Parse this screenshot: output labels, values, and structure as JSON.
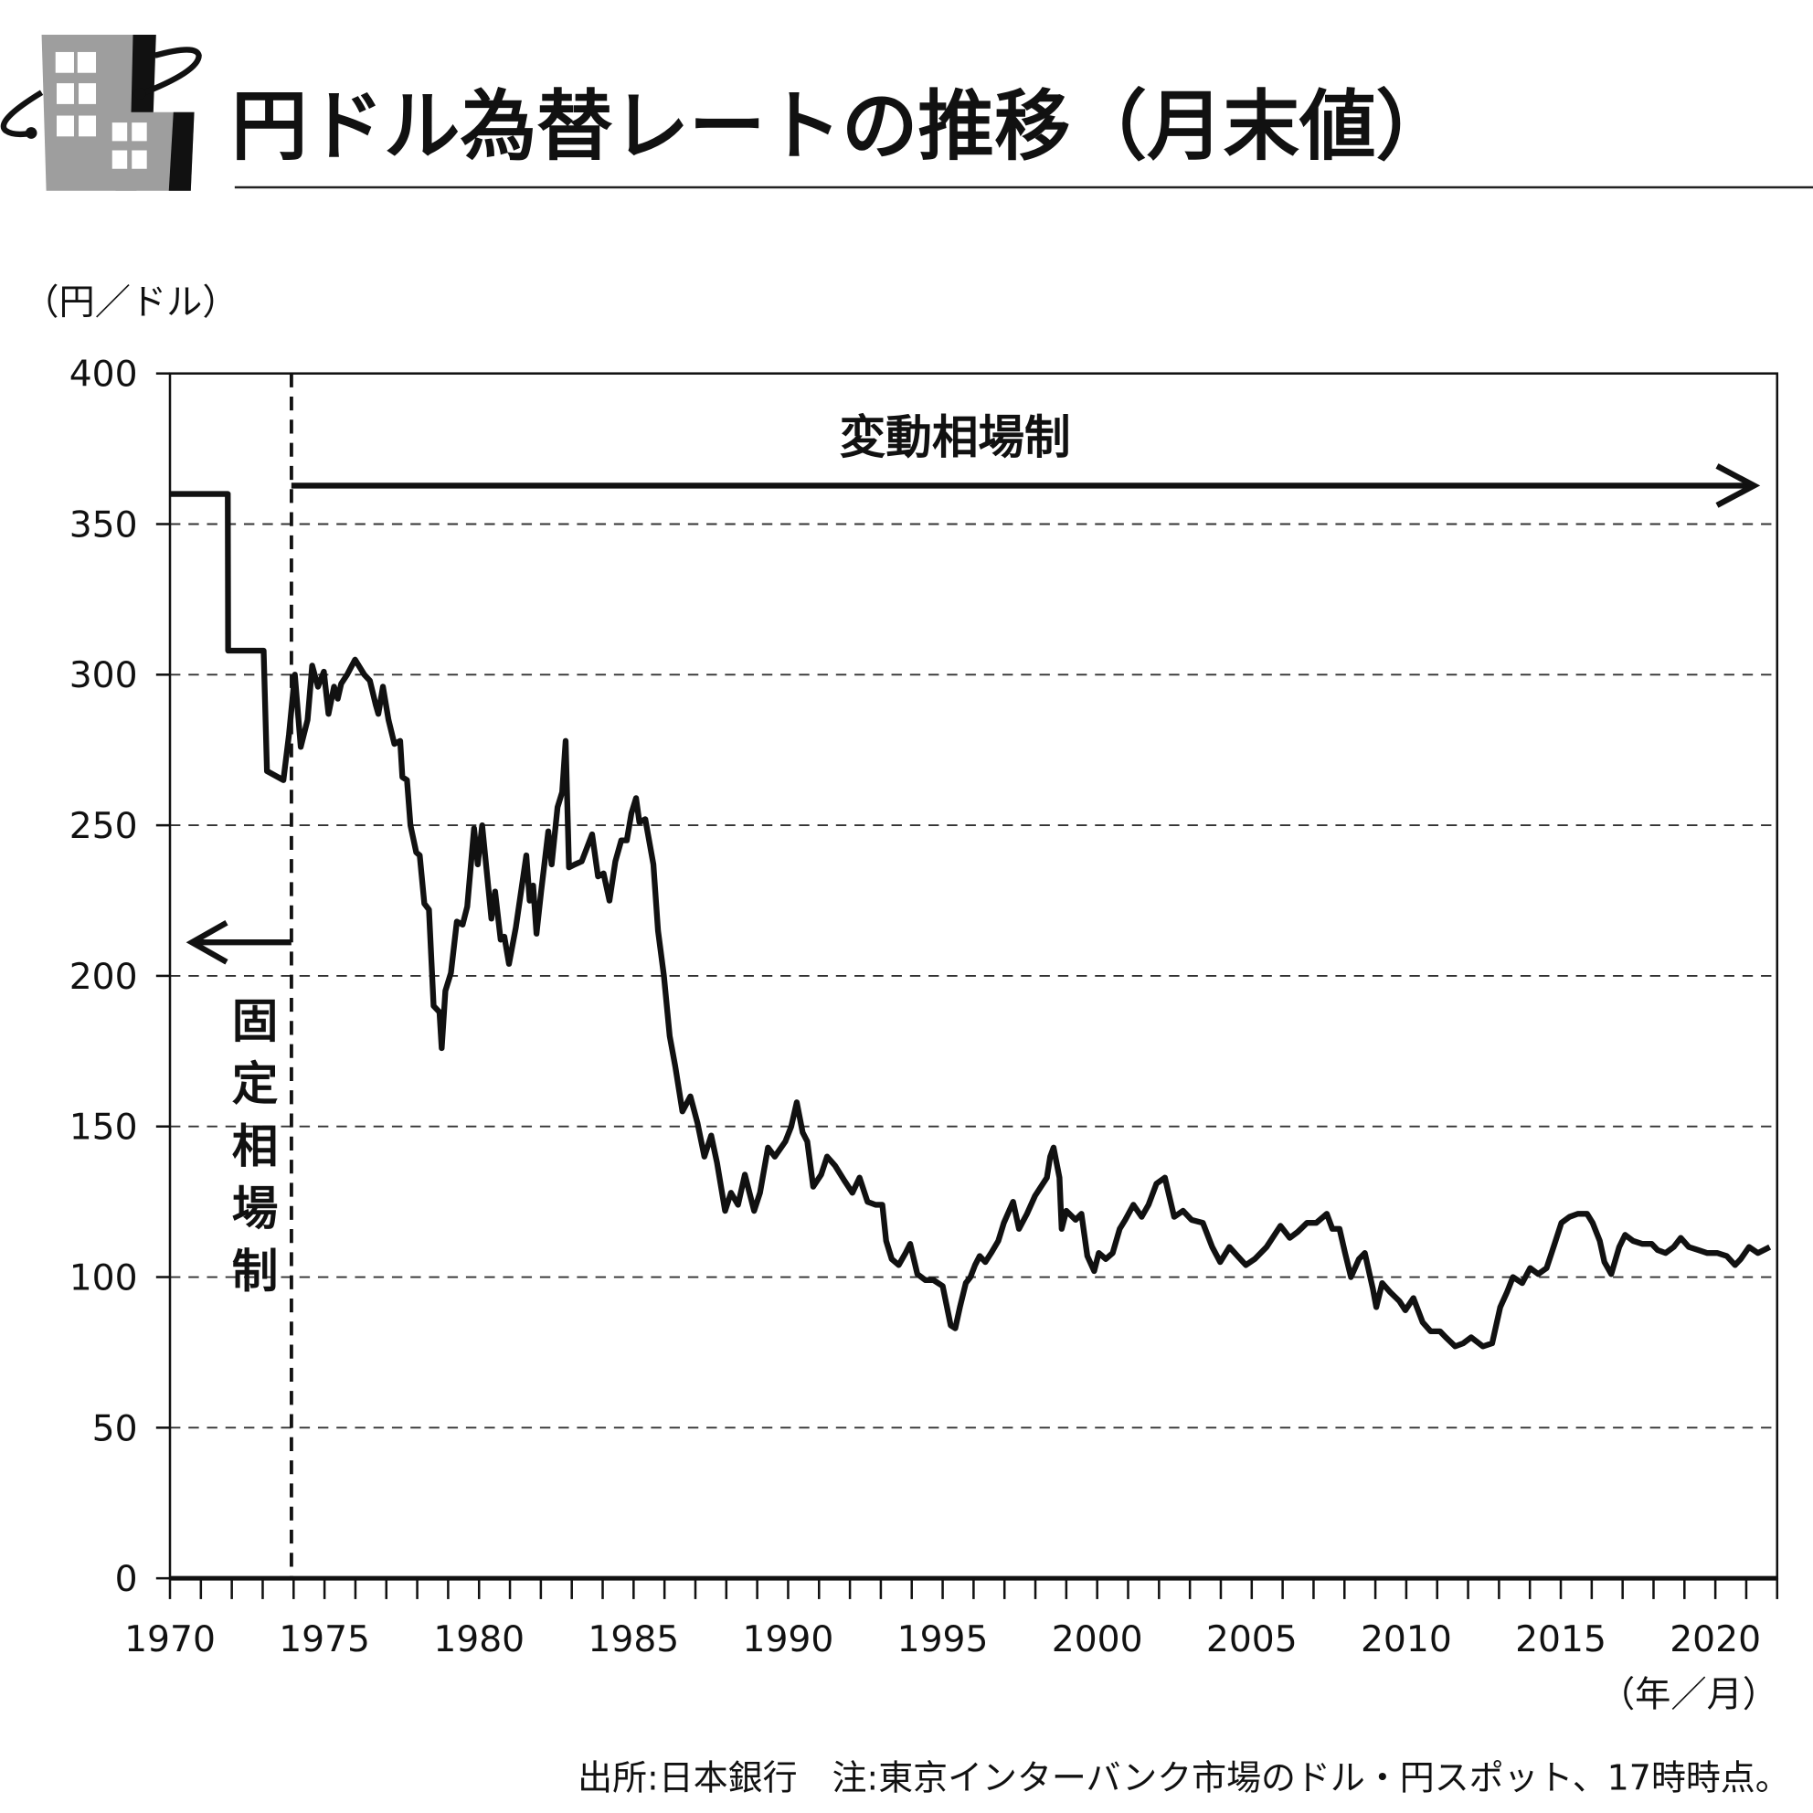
{
  "header": {
    "title": "円ドル為替レートの推移（月末値）",
    "logo": "office-building-globe-icon"
  },
  "chart_data": {
    "type": "line",
    "title": "円ドル為替レートの推移（月末値）",
    "ylabel": "（円／ドル）",
    "xlabel": "（年／月）",
    "ylim": [
      0,
      400
    ],
    "xlim": [
      1970,
      2022
    ],
    "yticks": [
      "0",
      "50",
      "100",
      "150",
      "200",
      "250",
      "300",
      "350",
      "400"
    ],
    "xticks": [
      "1970",
      "1975",
      "1980",
      "1985",
      "1990",
      "1995",
      "2000",
      "2005",
      "2010",
      "2015",
      "2020"
    ],
    "grid": "horizontal dashed",
    "regime_boundary": 1973.93,
    "annotations": {
      "fixed": "固定相場制",
      "floating": "変動相場制"
    },
    "source_note": "出所:日本銀行　注:東京インターバンク市場のドル・円スポット、17時時点。",
    "line_color": "#111111",
    "series": [
      {
        "x": [
          1970,
          1971.87,
          1971.88,
          1973.03,
          1973.14,
          1973.67,
          1973.85,
          1974.04,
          1974.23,
          1974.45,
          1974.6,
          1974.79,
          1974.98,
          1975.13,
          1975.31,
          1975.43,
          1975.54,
          1975.73,
          1975.99,
          1976.29,
          1976.47,
          1976.66,
          1976.74,
          1976.89,
          1977.07,
          1977.26,
          1977.45,
          1977.52,
          1977.67,
          1977.78,
          1977.97,
          1978.08,
          1978.23,
          1978.38,
          1978.53,
          1978.72,
          1978.79,
          1978.91,
          1979.09,
          1979.28,
          1979.47,
          1979.62,
          1979.84,
          1979.96,
          1980.1,
          1980.4,
          1980.52,
          1980.7,
          1980.82,
          1980.97,
          1981.19,
          1981.53,
          1981.64,
          1981.75,
          1981.86,
          1982.01,
          1982.24,
          1982.35,
          1982.54,
          1982.69,
          1982.8,
          1982.91,
          1983.1,
          1983.32,
          1983.66,
          1983.85,
          1984.03,
          1984.22,
          1984.41,
          1984.6,
          1984.78,
          1984.93,
          1985.08,
          1985.19,
          1985.38,
          1985.64,
          1985.79,
          1985.98,
          1986.17,
          1986.35,
          1986.58,
          1986.84,
          1987.07,
          1987.29,
          1987.51,
          1987.7,
          1987.96,
          1988.15,
          1988.38,
          1988.6,
          1988.9,
          1989.09,
          1989.35,
          1989.57,
          1989.91,
          1990.1,
          1990.28,
          1990.47,
          1990.62,
          1990.81,
          1991.07,
          1991.26,
          1991.52,
          1991.82,
          1992.08,
          1992.31,
          1992.57,
          1992.83,
          1993.05,
          1993.17,
          1993.35,
          1993.58,
          1993.8,
          1993.95,
          1994.18,
          1994.44,
          1994.7,
          1995.0,
          1995.26,
          1995.41,
          1995.56,
          1995.75,
          1995.9,
          1996.05,
          1996.2,
          1996.38,
          1996.57,
          1996.8,
          1996.98,
          1997.28,
          1997.47,
          1997.73,
          1997.99,
          1998.37,
          1998.48,
          1998.59,
          1998.78,
          1998.85,
          1999.0,
          1999.3,
          1999.49,
          1999.68,
          1999.9,
          2000.05,
          2000.28,
          2000.5,
          2000.73,
          2000.91,
          2001.17,
          2001.44,
          2001.66,
          2001.92,
          2002.19,
          2002.49,
          2002.78,
          2003.05,
          2003.42,
          2003.72,
          2003.98,
          2004.28,
          2004.54,
          2004.81,
          2005.1,
          2005.48,
          2005.93,
          2006.23,
          2006.49,
          2006.79,
          2007.09,
          2007.43,
          2007.61,
          2007.84,
          2008.02,
          2008.21,
          2008.47,
          2008.66,
          2008.92,
          2009.03,
          2009.22,
          2009.48,
          2009.78,
          2009.97,
          2010.23,
          2010.53,
          2010.79,
          2011.09,
          2011.28,
          2011.58,
          2011.84,
          2012.1,
          2012.48,
          2012.78,
          2013.04,
          2013.26,
          2013.45,
          2013.75,
          2014.01,
          2014.27,
          2014.54,
          2014.8,
          2015.02,
          2015.28,
          2015.55,
          2015.85,
          2016.03,
          2016.26,
          2016.41,
          2016.63,
          2016.89,
          2017.08,
          2017.34,
          2017.64,
          2017.94,
          2018.13,
          2018.39,
          2018.65,
          2018.88,
          2019.14,
          2019.44,
          2019.74,
          2020.07,
          2020.37,
          2020.64,
          2020.82,
          2021.09,
          2021.38,
          2021.76
        ],
        "y": [
          360,
          360,
          308,
          308,
          268,
          265,
          280,
          300,
          276,
          285,
          303,
          296,
          301,
          287,
          296,
          292,
          297,
          300,
          305,
          300,
          298,
          290,
          287,
          296,
          285,
          277,
          278,
          266,
          265,
          250,
          241,
          240,
          224,
          222,
          190,
          188,
          176,
          195,
          201,
          218,
          217,
          223,
          249,
          237,
          250,
          219,
          228,
          212,
          213,
          204,
          216,
          240,
          225,
          230,
          214,
          228,
          248,
          237,
          256,
          261,
          278,
          236,
          237,
          238,
          247,
          233,
          234,
          225,
          238,
          245,
          245,
          254,
          259,
          251,
          252,
          237,
          215,
          200,
          180,
          170,
          155,
          160,
          151,
          140,
          147,
          138,
          122,
          128,
          124,
          134,
          122,
          128,
          143,
          140,
          145,
          150,
          158,
          148,
          145,
          130,
          134,
          140,
          137,
          132,
          128,
          133,
          125,
          124,
          124,
          112,
          106,
          104,
          108,
          111,
          101,
          99,
          99,
          97,
          84,
          83,
          90,
          98,
          100,
          104,
          107,
          105,
          108,
          112,
          118,
          125,
          116,
          121,
          127,
          133,
          140,
          143,
          133,
          116,
          122,
          119,
          121,
          107,
          102,
          108,
          106,
          108,
          116,
          119,
          124,
          120,
          124,
          131,
          133,
          120,
          122,
          119,
          118,
          110,
          105,
          110,
          107,
          104,
          106,
          110,
          117,
          113,
          115,
          118,
          118,
          121,
          116,
          116,
          108,
          100,
          106,
          108,
          96,
          90,
          98,
          95,
          92,
          89,
          93,
          85,
          82,
          82,
          80,
          77,
          78,
          80,
          77,
          78,
          90,
          95,
          100,
          98,
          103,
          101,
          103,
          111,
          118,
          120,
          121,
          121,
          118,
          112,
          105,
          101,
          110,
          114,
          112,
          111,
          111,
          109,
          108,
          110,
          113,
          110,
          109,
          108,
          108,
          107,
          104,
          106,
          110,
          108,
          110
        ]
      }
    ]
  }
}
